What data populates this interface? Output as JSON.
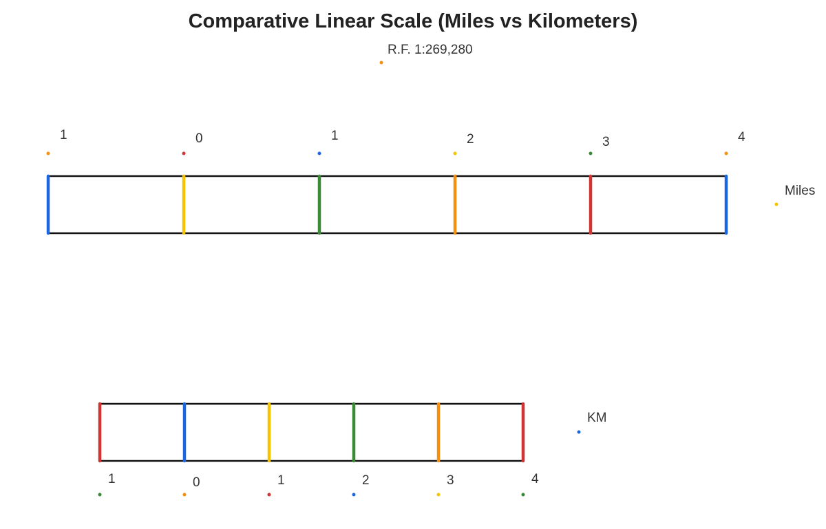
{
  "title": "Comparative Linear Scale (Miles vs Kilometers)",
  "rf_label": "R.F. 1:269,280",
  "colors": {
    "blue": "#1a66e0",
    "yellow": "#f5c400",
    "green": "#3a8a35",
    "orange": "#f5900e",
    "red": "#d23333",
    "frame": "#111111",
    "text": "#333333"
  },
  "scales": [
    {
      "name": "miles",
      "unit_label": "Miles",
      "unit_dot_color": "yellow",
      "divisions": [
        {
          "label": "1",
          "bar_color": "blue",
          "dot_color": "orange"
        },
        {
          "label": "0",
          "bar_color": "yellow",
          "dot_color": "red"
        },
        {
          "label": "1",
          "bar_color": "green",
          "dot_color": "blue"
        },
        {
          "label": "2",
          "bar_color": "orange",
          "dot_color": "yellow"
        },
        {
          "label": "3",
          "bar_color": "red",
          "dot_color": "green"
        },
        {
          "label": "4",
          "bar_color": "blue",
          "dot_color": "orange"
        }
      ]
    },
    {
      "name": "km",
      "unit_label": "KM",
      "unit_dot_color": "blue",
      "divisions": [
        {
          "label": "1",
          "bar_color": "red",
          "dot_color": "green"
        },
        {
          "label": "0",
          "bar_color": "blue",
          "dot_color": "orange"
        },
        {
          "label": "1",
          "bar_color": "yellow",
          "dot_color": "red"
        },
        {
          "label": "2",
          "bar_color": "green",
          "dot_color": "blue"
        },
        {
          "label": "3",
          "bar_color": "orange",
          "dot_color": "yellow"
        },
        {
          "label": "4",
          "bar_color": "red",
          "dot_color": "green"
        }
      ]
    }
  ]
}
